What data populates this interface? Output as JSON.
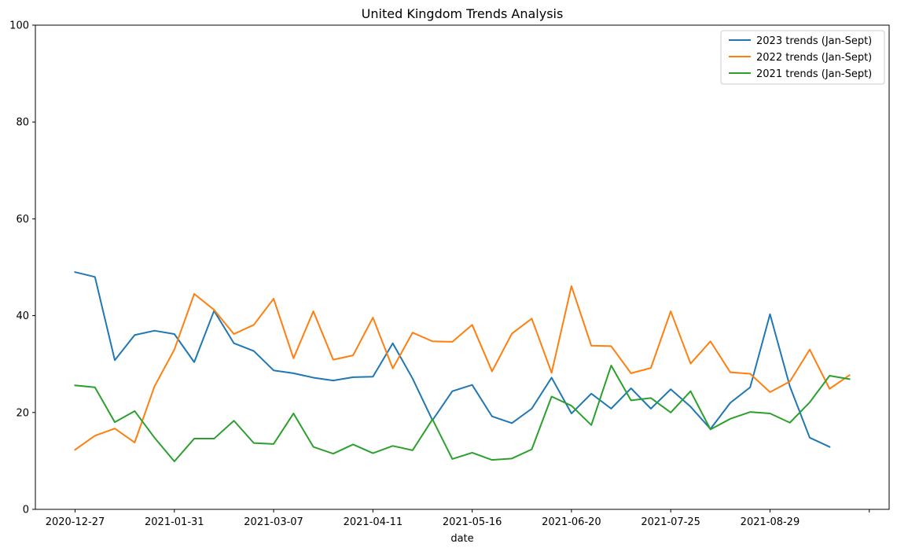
{
  "chart_data": {
    "type": "line",
    "title": "United Kingdom Trends Analysis",
    "xlabel": "date",
    "ylabel": "",
    "ylim": [
      0,
      100
    ],
    "yticks": [
      0,
      20,
      40,
      60,
      80,
      100
    ],
    "xtick_labels": [
      {
        "index": 0,
        "label": "2020-12-27"
      },
      {
        "index": 5,
        "label": "2021-01-31"
      },
      {
        "index": 10,
        "label": "2021-03-07"
      },
      {
        "index": 15,
        "label": "2021-04-11"
      },
      {
        "index": 20,
        "label": "2021-05-16"
      },
      {
        "index": 25,
        "label": "2021-06-20"
      },
      {
        "index": 30,
        "label": "2021-07-25"
      },
      {
        "index": 35,
        "label": "2021-08-29"
      },
      {
        "index": 40,
        "label": ""
      }
    ],
    "x_range": [
      -2,
      41
    ],
    "legend_position": "top-right",
    "series": [
      {
        "name": "2023 trends (Jan-Sept)",
        "color": "#1f77b4",
        "values": [
          49.0,
          48.0,
          30.8,
          36.0,
          36.9,
          36.2,
          30.4,
          41.0,
          34.3,
          32.7,
          28.7,
          28.1,
          27.2,
          26.6,
          27.3,
          27.4,
          34.3,
          27.0,
          18.4,
          24.4,
          25.7,
          19.2,
          17.8,
          20.8,
          27.2,
          19.8,
          23.9,
          20.8,
          25.0,
          20.8,
          24.8,
          21.2,
          16.6,
          22.0,
          25.2,
          40.3,
          25.4,
          14.8,
          12.9
        ]
      },
      {
        "name": "2022 trends (Jan-Sept)",
        "color": "#ff7f0e",
        "values": [
          12.3,
          15.2,
          16.7,
          13.8,
          25.4,
          33.0,
          44.5,
          41.2,
          36.2,
          38.1,
          43.5,
          31.2,
          40.9,
          30.9,
          31.8,
          39.6,
          29.1,
          36.5,
          34.7,
          34.6,
          38.1,
          28.5,
          36.3,
          39.4,
          28.2,
          46.1,
          33.8,
          33.7,
          28.1,
          29.2,
          40.9,
          30.1,
          34.7,
          28.3,
          28.0,
          24.2,
          26.4,
          33.0,
          24.9,
          27.7
        ]
      },
      {
        "name": "2021 trends (Jan-Sept)",
        "color": "#2ca02c",
        "values": [
          25.6,
          25.2,
          18.0,
          20.3,
          14.8,
          9.9,
          14.6,
          14.6,
          18.3,
          13.7,
          13.5,
          19.8,
          12.9,
          11.5,
          13.4,
          11.6,
          13.1,
          12.2,
          18.6,
          10.4,
          11.7,
          10.2,
          10.5,
          12.4,
          23.3,
          21.4,
          17.4,
          29.7,
          22.5,
          23.0,
          20.0,
          24.4,
          16.5,
          18.7,
          20.1,
          19.8,
          17.9,
          22.1,
          27.6,
          26.9
        ]
      }
    ]
  }
}
